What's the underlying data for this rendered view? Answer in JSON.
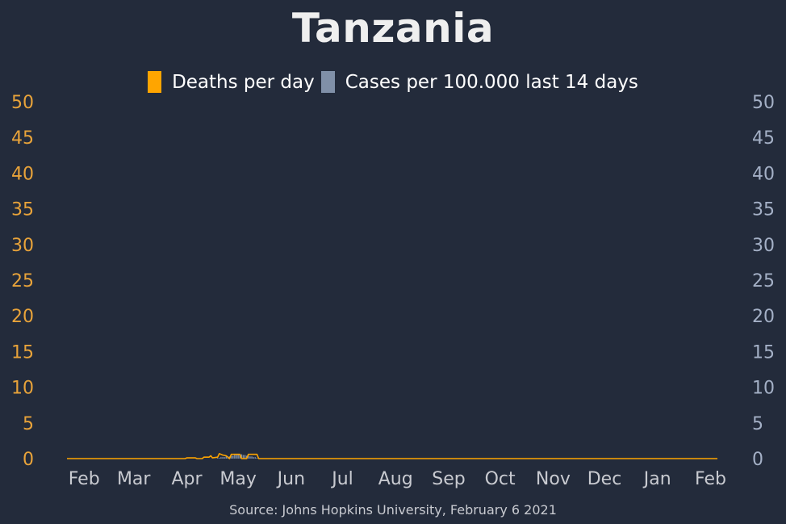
{
  "chart_data": {
    "type": "line",
    "title": "Tanzania",
    "source": "Source: Johns Hopkins University, February 6 2021",
    "legend": [
      {
        "label": "Deaths per day",
        "color": "#ffa500"
      },
      {
        "label": "Cases per 100.000 last 14 days",
        "color": "#8090a8"
      }
    ],
    "legend_position": "top-center",
    "grid": false,
    "x_tick_labels": [
      "Feb",
      "Mar",
      "Apr",
      "May",
      "Jun",
      "Jul",
      "Aug",
      "Sep",
      "Oct",
      "Nov",
      "Dec",
      "Jan",
      "Feb"
    ],
    "x_ticks_date": [
      "2020-02-01",
      "2020-03-01",
      "2020-04-01",
      "2020-05-01",
      "2020-06-01",
      "2020-07-01",
      "2020-08-01",
      "2020-09-01",
      "2020-10-01",
      "2020-11-01",
      "2020-12-01",
      "2021-01-01",
      "2021-02-01"
    ],
    "xlim": [
      "2020-01-22",
      "2021-02-05"
    ],
    "y_left": {
      "lim": [
        0,
        50
      ],
      "ticks": [
        0,
        5,
        10,
        15,
        20,
        25,
        30,
        35,
        40,
        45,
        50
      ],
      "color": "#e8a33a"
    },
    "y_right": {
      "lim": [
        0,
        50
      ],
      "ticks": [
        0,
        5,
        10,
        15,
        20,
        25,
        30,
        35,
        40,
        45,
        50
      ],
      "color": "#a4b0c6"
    },
    "series": [
      {
        "name": "Deaths per day",
        "kind": "line",
        "axis": "left",
        "color": "#ffa500",
        "points": [
          [
            "2020-01-22",
            0
          ],
          [
            "2020-03-31",
            0
          ],
          [
            "2020-04-01",
            0.1
          ],
          [
            "2020-04-06",
            0.1
          ],
          [
            "2020-04-07",
            0
          ],
          [
            "2020-04-10",
            0
          ],
          [
            "2020-04-11",
            0.2
          ],
          [
            "2020-04-14",
            0.2
          ],
          [
            "2020-04-15",
            0.4
          ],
          [
            "2020-04-16",
            0.1
          ],
          [
            "2020-04-19",
            0.2
          ],
          [
            "2020-04-20",
            0.7
          ],
          [
            "2020-04-22",
            0.5
          ],
          [
            "2020-04-24",
            0.4
          ],
          [
            "2020-04-26",
            0
          ],
          [
            "2020-04-27",
            0.6
          ],
          [
            "2020-05-02",
            0.6
          ],
          [
            "2020-05-03",
            0
          ],
          [
            "2020-05-06",
            0
          ],
          [
            "2020-05-07",
            0.6
          ],
          [
            "2020-05-12",
            0.6
          ],
          [
            "2020-05-13",
            0
          ],
          [
            "2021-02-05",
            0
          ]
        ]
      },
      {
        "name": "Cases per 100.000 last 14 days",
        "kind": "bar",
        "axis": "right",
        "color": "#8090a8",
        "points": [
          [
            "2020-04-19",
            0.1
          ],
          [
            "2020-04-20",
            0.1
          ],
          [
            "2020-04-21",
            0.2
          ],
          [
            "2020-04-22",
            0.2
          ],
          [
            "2020-04-23",
            0.2
          ],
          [
            "2020-04-24",
            0.3
          ],
          [
            "2020-04-25",
            0.3
          ],
          [
            "2020-04-26",
            0.3
          ],
          [
            "2020-04-27",
            0.4
          ],
          [
            "2020-04-28",
            0.4
          ],
          [
            "2020-04-29",
            0.5
          ],
          [
            "2020-04-30",
            0.5
          ],
          [
            "2020-05-01",
            0.6
          ],
          [
            "2020-05-02",
            0.6
          ],
          [
            "2020-05-03",
            0.6
          ],
          [
            "2020-05-04",
            0.5
          ],
          [
            "2020-05-05",
            0.5
          ],
          [
            "2020-05-06",
            0.4
          ],
          [
            "2020-05-07",
            0.4
          ],
          [
            "2020-05-08",
            0.3
          ],
          [
            "2020-05-09",
            0.3
          ],
          [
            "2020-05-10",
            0.2
          ],
          [
            "2020-05-11",
            0.2
          ],
          [
            "2020-05-12",
            0.1
          ]
        ]
      }
    ]
  }
}
